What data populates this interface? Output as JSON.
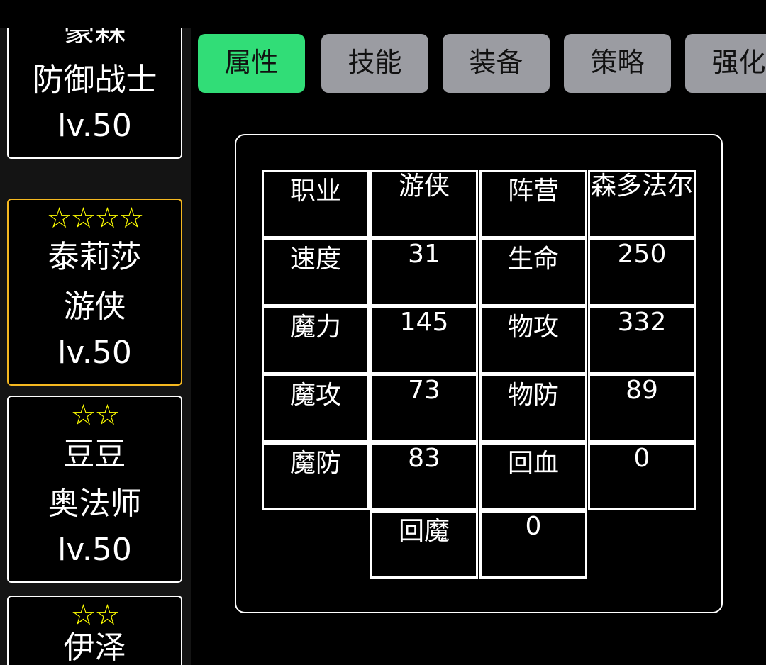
{
  "sidebar": {
    "cards": [
      {
        "stars": "☆☆",
        "name": "豪森",
        "class": "防御战士",
        "level": "lv.50"
      },
      {
        "stars": "☆☆☆☆",
        "name": "泰莉莎",
        "class": "游侠",
        "level": "lv.50",
        "selected": true
      },
      {
        "stars": "☆☆",
        "name": "豆豆",
        "class": "奥法师",
        "level": "lv.50"
      },
      {
        "stars": "☆☆",
        "name": "伊泽"
      }
    ]
  },
  "tabs": [
    {
      "label": "属性",
      "active": true
    },
    {
      "label": "技能"
    },
    {
      "label": "装备"
    },
    {
      "label": "策略"
    },
    {
      "label": "强化"
    }
  ],
  "stats": {
    "rows": [
      [
        "职业",
        "游侠",
        "阵营",
        "森多法尔"
      ],
      [
        "速度",
        "31",
        "生命",
        "250"
      ],
      [
        "魔力",
        "145",
        "物攻",
        "332"
      ],
      [
        "魔攻",
        "73",
        "物防",
        "89"
      ],
      [
        "魔防",
        "83",
        "回血",
        "0"
      ],
      [
        "回魔",
        "0"
      ]
    ]
  },
  "colors": {
    "active_tab": "#31dd77",
    "tab": "#9b9ca2",
    "selected_border": "#f5b820",
    "stars": "#ffff00"
  }
}
